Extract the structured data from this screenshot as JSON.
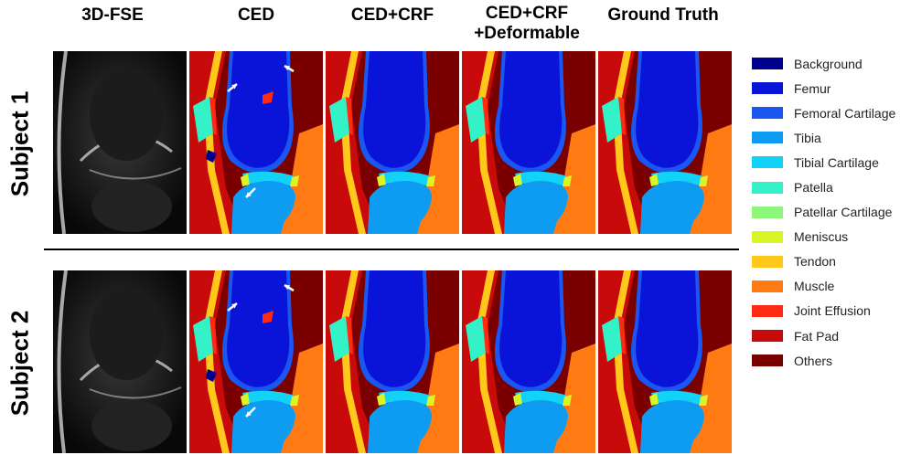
{
  "columns": [
    "3D-FSE",
    "CED",
    "CED+CRF",
    "CED+CRF\n+Deformable",
    "Ground Truth"
  ],
  "column_lines": [
    [
      "3D-FSE"
    ],
    [
      "CED"
    ],
    [
      "CED+CRF"
    ],
    [
      "CED+CRF",
      "+Deformable"
    ],
    [
      "Ground Truth"
    ]
  ],
  "rows": [
    "Subject 1",
    "Subject 2"
  ],
  "legend": [
    {
      "label": "Background",
      "color": "#00008f"
    },
    {
      "label": "Femur",
      "color": "#0a14d9"
    },
    {
      "label": "Femoral Cartilage",
      "color": "#1a56f0"
    },
    {
      "label": "Tibia",
      "color": "#0e9cf2"
    },
    {
      "label": "Tibial Cartilage",
      "color": "#12d2f7"
    },
    {
      "label": "Patella",
      "color": "#33f2c8"
    },
    {
      "label": "Patellar Cartilage",
      "color": "#8cf77a"
    },
    {
      "label": "Meniscus",
      "color": "#d9f526"
    },
    {
      "label": "Tendon",
      "color": "#ffc81a"
    },
    {
      "label": "Muscle",
      "color": "#ff7a12"
    },
    {
      "label": "Joint Effusion",
      "color": "#ff2a12"
    },
    {
      "label": "Fat Pad",
      "color": "#c80a0a"
    },
    {
      "label": "Others",
      "color": "#7a0000"
    }
  ]
}
